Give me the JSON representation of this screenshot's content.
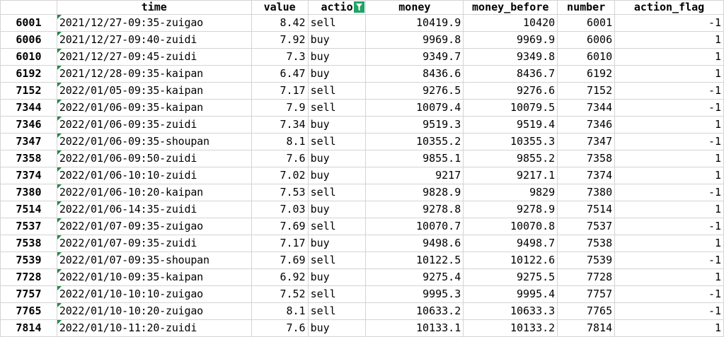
{
  "columns": {
    "time": "time",
    "value": "value",
    "action": "actio",
    "money": "money",
    "money_before": "money_before",
    "number": "number",
    "action_flag": "action_flag"
  },
  "filter_icon": "filter-funnel-icon",
  "rows": [
    {
      "id": "6001",
      "time": "2021/12/27-09:35-zuigao",
      "value": "8.42",
      "action": "sell",
      "money": "10419.9",
      "money_before": "10420",
      "number": "6001",
      "action_flag": "-1"
    },
    {
      "id": "6006",
      "time": "2021/12/27-09:40-zuidi",
      "value": "7.92",
      "action": "buy",
      "money": "9969.8",
      "money_before": "9969.9",
      "number": "6006",
      "action_flag": "1"
    },
    {
      "id": "6010",
      "time": "2021/12/27-09:45-zuidi",
      "value": "7.3",
      "action": "buy",
      "money": "9349.7",
      "money_before": "9349.8",
      "number": "6010",
      "action_flag": "1"
    },
    {
      "id": "6192",
      "time": "2021/12/28-09:35-kaipan",
      "value": "6.47",
      "action": "buy",
      "money": "8436.6",
      "money_before": "8436.7",
      "number": "6192",
      "action_flag": "1"
    },
    {
      "id": "7152",
      "time": "2022/01/05-09:35-kaipan",
      "value": "7.17",
      "action": "sell",
      "money": "9276.5",
      "money_before": "9276.6",
      "number": "7152",
      "action_flag": "-1"
    },
    {
      "id": "7344",
      "time": "2022/01/06-09:35-kaipan",
      "value": "7.9",
      "action": "sell",
      "money": "10079.4",
      "money_before": "10079.5",
      "number": "7344",
      "action_flag": "-1"
    },
    {
      "id": "7346",
      "time": "2022/01/06-09:35-zuidi",
      "value": "7.34",
      "action": "buy",
      "money": "9519.3",
      "money_before": "9519.4",
      "number": "7346",
      "action_flag": "1"
    },
    {
      "id": "7347",
      "time": "2022/01/06-09:35-shoupan",
      "value": "8.1",
      "action": "sell",
      "money": "10355.2",
      "money_before": "10355.3",
      "number": "7347",
      "action_flag": "-1"
    },
    {
      "id": "7358",
      "time": "2022/01/06-09:50-zuidi",
      "value": "7.6",
      "action": "buy",
      "money": "9855.1",
      "money_before": "9855.2",
      "number": "7358",
      "action_flag": "1"
    },
    {
      "id": "7374",
      "time": "2022/01/06-10:10-zuidi",
      "value": "7.02",
      "action": "buy",
      "money": "9217",
      "money_before": "9217.1",
      "number": "7374",
      "action_flag": "1"
    },
    {
      "id": "7380",
      "time": "2022/01/06-10:20-kaipan",
      "value": "7.53",
      "action": "sell",
      "money": "9828.9",
      "money_before": "9829",
      "number": "7380",
      "action_flag": "-1"
    },
    {
      "id": "7514",
      "time": "2022/01/06-14:35-zuidi",
      "value": "7.03",
      "action": "buy",
      "money": "9278.8",
      "money_before": "9278.9",
      "number": "7514",
      "action_flag": "1"
    },
    {
      "id": "7537",
      "time": "2022/01/07-09:35-zuigao",
      "value": "7.69",
      "action": "sell",
      "money": "10070.7",
      "money_before": "10070.8",
      "number": "7537",
      "action_flag": "-1"
    },
    {
      "id": "7538",
      "time": "2022/01/07-09:35-zuidi",
      "value": "7.17",
      "action": "buy",
      "money": "9498.6",
      "money_before": "9498.7",
      "number": "7538",
      "action_flag": "1"
    },
    {
      "id": "7539",
      "time": "2022/01/07-09:35-shoupan",
      "value": "7.69",
      "action": "sell",
      "money": "10122.5",
      "money_before": "10122.6",
      "number": "7539",
      "action_flag": "-1"
    },
    {
      "id": "7728",
      "time": "2022/01/10-09:35-kaipan",
      "value": "6.92",
      "action": "buy",
      "money": "9275.4",
      "money_before": "9275.5",
      "number": "7728",
      "action_flag": "1"
    },
    {
      "id": "7757",
      "time": "2022/01/10-10:10-zuigao",
      "value": "7.52",
      "action": "sell",
      "money": "9995.3",
      "money_before": "9995.4",
      "number": "7757",
      "action_flag": "-1"
    },
    {
      "id": "7765",
      "time": "2022/01/10-10:20-zuigao",
      "value": "8.1",
      "action": "sell",
      "money": "10633.2",
      "money_before": "10633.3",
      "number": "7765",
      "action_flag": "-1"
    },
    {
      "id": "7814",
      "time": "2022/01/10-11:20-zuidi",
      "value": "7.6",
      "action": "buy",
      "money": "10133.1",
      "money_before": "10133.2",
      "number": "7814",
      "action_flag": "1"
    }
  ]
}
